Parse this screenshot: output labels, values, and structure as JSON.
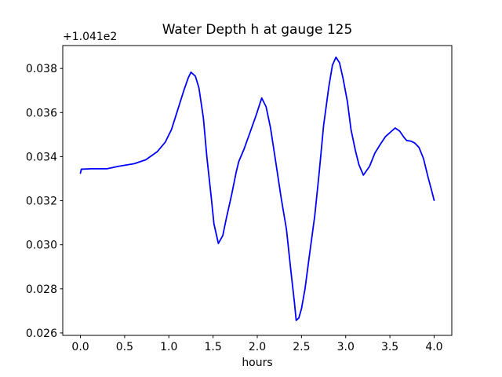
{
  "chart_data": {
    "type": "line",
    "title": "Water Depth h at gauge 125",
    "xlabel": "hours",
    "ylabel": "",
    "y_axis_offset_label": "+1.041e2",
    "grid": false,
    "legend_position": "none",
    "line_color": "#0000ff",
    "background_color": "#ffffff",
    "xlim": [
      -0.2,
      4.2
    ],
    "ylim": [
      0.02589,
      0.03904
    ],
    "x_ticks": [
      0.0,
      0.5,
      1.0,
      1.5,
      2.0,
      2.5,
      3.0,
      3.5,
      4.0
    ],
    "x_tick_labels": [
      "0.0",
      "0.5",
      "1.0",
      "1.5",
      "2.0",
      "2.5",
      "3.0",
      "3.5",
      "4.0"
    ],
    "y_ticks": [
      0.026,
      0.028,
      0.03,
      0.032,
      0.034,
      0.036,
      0.038
    ],
    "y_tick_labels": [
      "0.026",
      "0.028",
      "0.030",
      "0.032",
      "0.034",
      "0.036",
      "0.038"
    ],
    "series": [
      {
        "name": "Water Depth h (offset +1.041e2)",
        "x": [
          0.0,
          0.01,
          0.12,
          0.3,
          0.43,
          0.61,
          0.74,
          0.87,
          0.96,
          1.03,
          1.1,
          1.17,
          1.22,
          1.25,
          1.3,
          1.34,
          1.39,
          1.43,
          1.48,
          1.51,
          1.56,
          1.61,
          1.65,
          1.71,
          1.76,
          1.79,
          1.85,
          1.92,
          1.99,
          2.05,
          2.1,
          2.15,
          2.21,
          2.27,
          2.33,
          2.38,
          2.42,
          2.44,
          2.47,
          2.5,
          2.54,
          2.59,
          2.65,
          2.7,
          2.75,
          2.81,
          2.85,
          2.89,
          2.93,
          2.97,
          3.02,
          3.06,
          3.11,
          3.15,
          3.2,
          3.27,
          3.33,
          3.39,
          3.45,
          3.52,
          3.56,
          3.61,
          3.66,
          3.69,
          3.74,
          3.78,
          3.83,
          3.88,
          3.93,
          3.97,
          4.0
        ],
        "y": [
          0.03325,
          0.03343,
          0.03345,
          0.03345,
          0.03356,
          0.03368,
          0.03386,
          0.03423,
          0.03466,
          0.03523,
          0.03612,
          0.03701,
          0.03758,
          0.03783,
          0.03765,
          0.03712,
          0.03577,
          0.03398,
          0.03213,
          0.03095,
          0.03006,
          0.03042,
          0.0312,
          0.03227,
          0.03327,
          0.03377,
          0.03434,
          0.03512,
          0.03591,
          0.03666,
          0.03626,
          0.0353,
          0.03373,
          0.03213,
          0.0307,
          0.02882,
          0.02739,
          0.02657,
          0.02668,
          0.0271,
          0.028,
          0.02953,
          0.03131,
          0.03327,
          0.03541,
          0.03719,
          0.03815,
          0.03851,
          0.03826,
          0.03755,
          0.03648,
          0.03523,
          0.03427,
          0.03363,
          0.03316,
          0.03356,
          0.03416,
          0.03455,
          0.03491,
          0.03516,
          0.0353,
          0.03516,
          0.03487,
          0.03473,
          0.0347,
          0.03462,
          0.03441,
          0.03391,
          0.03309,
          0.03249,
          0.03202
        ]
      }
    ]
  }
}
